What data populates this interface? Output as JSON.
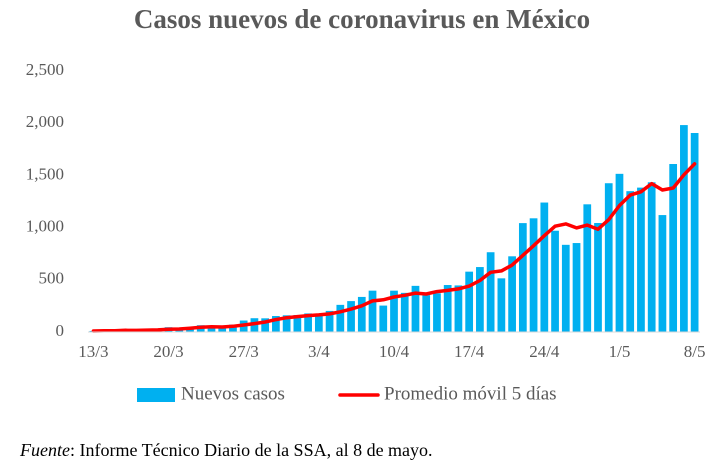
{
  "chart_data": {
    "type": "bar_line",
    "title": "Casos nuevos de coronavirus en México",
    "categories": [
      "13/3",
      null,
      null,
      null,
      null,
      null,
      null,
      "20/3",
      null,
      null,
      null,
      null,
      null,
      null,
      "27/3",
      null,
      null,
      null,
      null,
      null,
      null,
      "3/4",
      null,
      null,
      null,
      null,
      null,
      null,
      "10/4",
      null,
      null,
      null,
      null,
      null,
      null,
      "17/4",
      null,
      null,
      null,
      null,
      null,
      null,
      "24/4",
      null,
      null,
      null,
      null,
      null,
      null,
      "1/5",
      null,
      null,
      null,
      null,
      null,
      null,
      "8/5"
    ],
    "series": [
      {
        "name": "Nuevos casos",
        "kind": "bar",
        "color": "#00b0f0",
        "values": [
          10,
          15,
          12,
          29,
          11,
          25,
          25,
          46,
          39,
          48,
          65,
          51,
          38,
          70,
          110,
          132,
          131,
          153,
          160,
          163,
          178,
          163,
          202,
          260,
          296,
          336,
          396,
          253,
          396,
          375,
          442,
          353,
          371,
          450,
          446,
          578,
          622,
          764,
          514,
          725,
          1043,
          1089,
          1240,
          970,
          835,
          852,
          1223,
          1044,
          1425,
          1515,
          1349,
          1383,
          1434,
          1120,
          1609,
          1982,
          1906
        ]
      },
      {
        "name": "Promedio móvil 5 días",
        "kind": "line",
        "color": "#ff0000",
        "values": [
          10,
          12.5,
          12.3,
          16.5,
          15.4,
          18.4,
          20.4,
          27.2,
          29.2,
          36.6,
          44.6,
          49.8,
          48.2,
          54.4,
          66.8,
          80.2,
          96.2,
          119.2,
          137.2,
          147.8,
          157,
          163.4,
          173.2,
          193.2,
          219.8,
          251.4,
          298,
          308.2,
          335.4,
          351.2,
          372.4,
          363.8,
          387.4,
          398.2,
          412.4,
          439.6,
          493.4,
          572,
          584.8,
          640.6,
          733.6,
          827,
          922.2,
          1013.4,
          1035.4,
          997.2,
          1024,
          984.8,
          1075.8,
          1211.8,
          1311.2,
          1343.2,
          1421.2,
          1360.2,
          1379,
          1505.6,
          1610.2
        ]
      }
    ],
    "ylim": [
      0,
      2500
    ],
    "yticks": [
      0,
      500,
      {
        "value": 1000,
        "label": "1,000"
      },
      {
        "value": 1500,
        "label": "1,500"
      },
      {
        "value": 2000,
        "label": "2,000"
      },
      {
        "value": 2500,
        "label": "2,500"
      }
    ],
    "grid": false,
    "legend": "bottom",
    "source_label": "Fuente",
    "source_text": ": Informe Técnico Diario de la SSA, al 8 de mayo."
  }
}
